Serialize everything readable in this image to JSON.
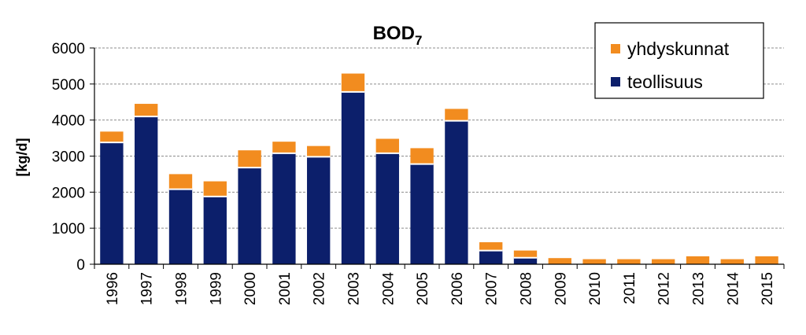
{
  "chart_data": {
    "type": "bar",
    "stacked": true,
    "title": "BOD",
    "title_subscript": "7",
    "xlabel": "",
    "ylabel": "[kg/d]",
    "ylim": [
      0,
      6000
    ],
    "yticks": [
      0,
      1000,
      2000,
      3000,
      4000,
      5000,
      6000
    ],
    "grid": "horizontal dashed",
    "legend_position": "top-right",
    "categories": [
      "1996",
      "1997",
      "1998",
      "1999",
      "2000",
      "2001",
      "2002",
      "2003",
      "2004",
      "2005",
      "2006",
      "2007",
      "2008",
      "2009",
      "2010",
      "2011",
      "2012",
      "2013",
      "2014",
      "2015"
    ],
    "series": [
      {
        "name": "teollisuus",
        "color": "#0c1f6b",
        "values": [
          3380,
          4100,
          2080,
          1880,
          2680,
          3080,
          2980,
          4780,
          3080,
          2780,
          3980,
          380,
          180,
          0,
          0,
          0,
          0,
          0,
          0,
          0
        ]
      },
      {
        "name": "yhdyskunnat",
        "color": "#f28c1f",
        "values": [
          300,
          350,
          420,
          420,
          480,
          320,
          300,
          510,
          400,
          440,
          330,
          230,
          200,
          170,
          140,
          140,
          140,
          220,
          140,
          220
        ]
      }
    ],
    "legend_order": [
      "yhdyskunnat",
      "teollisuus"
    ]
  }
}
